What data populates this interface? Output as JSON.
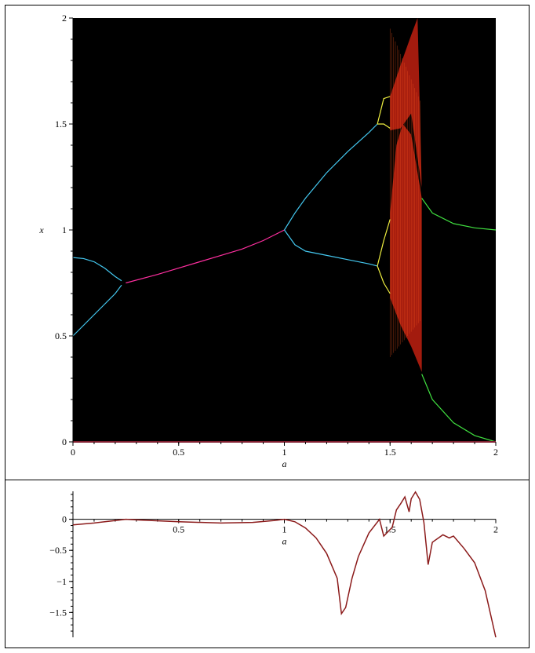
{
  "chart_data": [
    {
      "type": "scatter",
      "title": "",
      "xlabel": "a",
      "ylabel": "x",
      "xlim": [
        0,
        2
      ],
      "ylim": [
        0,
        2
      ],
      "background": "#000000",
      "x_ticks": [
        "0",
        "0.5",
        "1",
        "1.5",
        "2"
      ],
      "y_ticks": [
        "0",
        "0.5",
        "1",
        "1.5",
        "2"
      ],
      "x_tick_values": [
        0,
        0.5,
        1,
        1.5,
        2
      ],
      "y_tick_values": [
        0,
        0.5,
        1,
        1.5,
        2
      ],
      "series": [
        {
          "color": "#44c8f0",
          "x": [
            0,
            0.05,
            0.1,
            0.15,
            0.2,
            0.23
          ],
          "y_upper": [
            0.87,
            0.865,
            0.85,
            0.82,
            0.78,
            0.76
          ],
          "y_lower": [
            0.5,
            0.55,
            0.6,
            0.65,
            0.7,
            0.74
          ]
        },
        {
          "color": "#ff2fa0",
          "x": [
            0.25,
            0.4,
            0.5,
            0.6,
            0.7,
            0.8,
            0.9,
            1.0
          ],
          "y": [
            0.75,
            0.79,
            0.82,
            0.85,
            0.88,
            0.91,
            0.95,
            1.0
          ]
        },
        {
          "color": "#44c8f0",
          "x": [
            1.0,
            1.05,
            1.1,
            1.2,
            1.3,
            1.4,
            1.44
          ],
          "y_upper": [
            1.0,
            1.08,
            1.15,
            1.27,
            1.37,
            1.46,
            1.5
          ],
          "y_lower": [
            1.0,
            0.93,
            0.9,
            0.88,
            0.86,
            0.84,
            0.83
          ]
        },
        {
          "color": "#f0f040",
          "x": [
            1.44,
            1.47,
            1.5
          ],
          "y_upper_a": [
            1.5,
            1.62,
            1.63
          ],
          "y_upper_b": [
            1.5,
            1.5,
            1.48
          ],
          "y_lower_a": [
            0.83,
            0.75,
            0.7
          ],
          "y_lower_b": [
            0.83,
            0.95,
            1.05
          ]
        },
        {
          "color": "#40e040",
          "x": [
            1.65,
            1.7,
            1.8,
            1.9,
            2.0
          ],
          "y_upper": [
            1.15,
            1.08,
            1.03,
            1.01,
            1.0
          ],
          "y_lower": [
            0.32,
            0.2,
            0.09,
            0.03,
            0.0
          ]
        }
      ],
      "chaotic_region": {
        "color": "#c02010",
        "x_range": [
          1.5,
          1.65
        ]
      }
    },
    {
      "type": "line",
      "title": "",
      "xlabel": "a",
      "ylabel": "",
      "xlim": [
        0,
        2
      ],
      "ylim": [
        -1.9,
        0.45
      ],
      "x_ticks": [
        "0.5",
        "1",
        "1.5",
        "2"
      ],
      "x_tick_values": [
        0.5,
        1,
        1.5,
        2
      ],
      "y_ticks": [
        "0",
        "−0.5",
        "−1",
        "−1.5"
      ],
      "y_tick_values": [
        0,
        -0.5,
        -1,
        -1.5
      ],
      "series": [
        {
          "color": "#8b1a1a",
          "x": [
            0,
            0.1,
            0.2,
            0.25,
            0.3,
            0.5,
            0.7,
            0.85,
            0.95,
            1.0,
            1.05,
            1.1,
            1.15,
            1.2,
            1.25,
            1.27,
            1.29,
            1.32,
            1.35,
            1.4,
            1.45,
            1.47,
            1.49,
            1.51,
            1.53,
            1.55,
            1.57,
            1.59,
            1.6,
            1.62,
            1.64,
            1.66,
            1.68,
            1.7,
            1.75,
            1.78,
            1.8,
            1.85,
            1.9,
            1.95,
            2.0
          ],
          "y": [
            -0.09,
            -0.06,
            -0.02,
            0.0,
            -0.01,
            -0.04,
            -0.06,
            -0.05,
            -0.02,
            0.0,
            -0.04,
            -0.14,
            -0.3,
            -0.55,
            -0.95,
            -1.52,
            -1.42,
            -0.95,
            -0.6,
            -0.22,
            0.0,
            -0.27,
            -0.2,
            -0.13,
            0.15,
            0.25,
            0.36,
            0.12,
            0.33,
            0.44,
            0.32,
            -0.05,
            -0.73,
            -0.37,
            -0.25,
            -0.3,
            -0.27,
            -0.47,
            -0.7,
            -1.15,
            -1.9
          ]
        }
      ]
    }
  ]
}
